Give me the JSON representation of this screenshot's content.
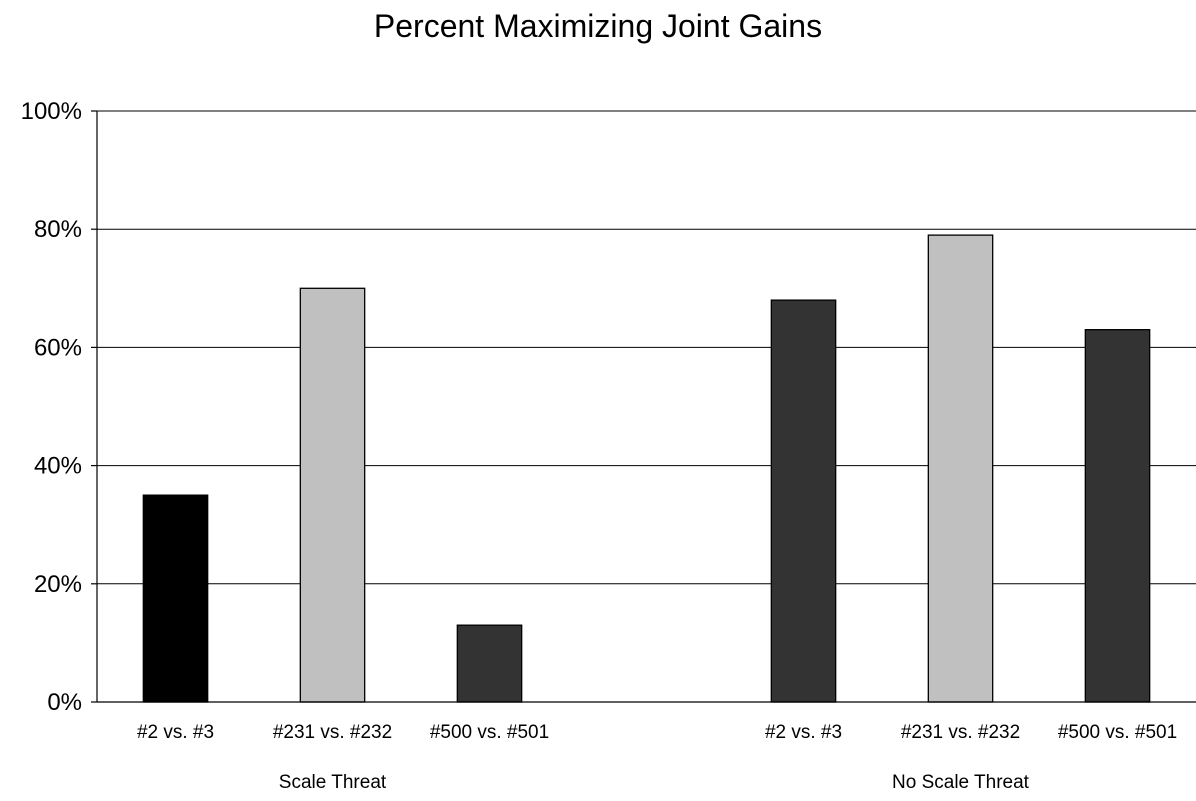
{
  "chart_data": {
    "type": "bar",
    "title": "Percent Maximizing Joint Gains",
    "xlabel": "",
    "ylabel": "",
    "ylim": [
      0,
      100
    ],
    "yticks": [
      "0%",
      "20%",
      "40%",
      "60%",
      "80%",
      "100%"
    ],
    "grid": true,
    "legend": "none",
    "groups": [
      {
        "label": "Scale Threat",
        "bars": [
          {
            "category": "#2 vs. #3",
            "value": 35,
            "color": "#000000"
          },
          {
            "category": "#231 vs. #232",
            "value": 70,
            "color": "#c0c0c0"
          },
          {
            "category": "#500 vs. #501",
            "value": 13,
            "color": "#333333"
          }
        ]
      },
      {
        "label": "No Scale Threat",
        "bars": [
          {
            "category": "#2 vs. #3",
            "value": 68,
            "color": "#333333"
          },
          {
            "category": "#231 vs. #232",
            "value": 79,
            "color": "#c0c0c0"
          },
          {
            "category": "#500 vs. #501",
            "value": 63,
            "color": "#333333"
          }
        ]
      }
    ]
  }
}
